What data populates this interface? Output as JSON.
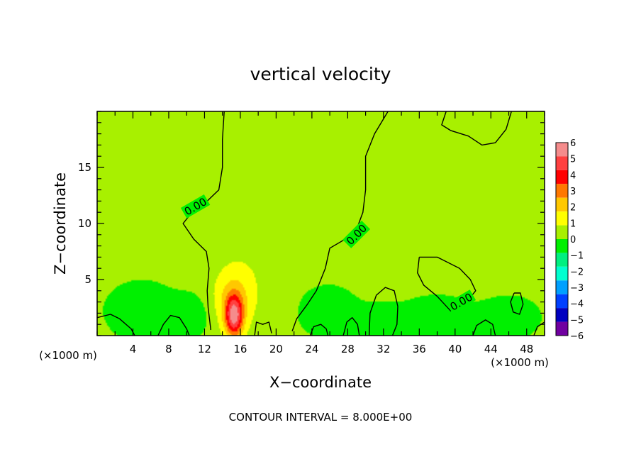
{
  "chart_data": {
    "type": "heatmap",
    "title": "vertical velocity",
    "xlabel": "X−coordinate",
    "ylabel": "Z−coordinate",
    "x_unit": "(×1000 m)",
    "y_unit": "(×1000 m)",
    "xlim": [
      0,
      50
    ],
    "ylim": [
      0,
      20
    ],
    "x_ticks": [
      4,
      8,
      12,
      16,
      20,
      24,
      28,
      32,
      36,
      40,
      44,
      48
    ],
    "y_ticks": [
      5,
      10,
      15
    ],
    "background_value": 0.2,
    "field_features": [
      {
        "x": 15.3,
        "z": 1.7,
        "sx": 0.7,
        "sz": 1.3,
        "amp": 5.2
      },
      {
        "x": 15.2,
        "z": 3.2,
        "sx": 1.6,
        "sz": 2.0,
        "amp": 1.9
      },
      {
        "x": 18.0,
        "z": 7.5,
        "sx": 3.2,
        "sz": 4.5,
        "amp": 0.5
      },
      {
        "x": 20.5,
        "z": 3.0,
        "sx": 1.0,
        "sz": 1.6,
        "amp": 0.4
      },
      {
        "x": 5.0,
        "z": 2.2,
        "sx": 2.5,
        "sz": 1.6,
        "amp": -0.9
      },
      {
        "x": 10.5,
        "z": 1.8,
        "sx": 1.5,
        "sz": 1.2,
        "amp": -0.9
      },
      {
        "x": 25.5,
        "z": 2.2,
        "sx": 2.2,
        "sz": 1.4,
        "amp": -0.9
      },
      {
        "x": 31.5,
        "z": 1.3,
        "sx": 2.0,
        "sz": 1.0,
        "amp": -0.7
      },
      {
        "x": 38.0,
        "z": 1.5,
        "sx": 2.6,
        "sz": 1.2,
        "amp": -1.0
      },
      {
        "x": 46.0,
        "z": 1.6,
        "sx": 2.2,
        "sz": 1.2,
        "amp": -0.8
      }
    ],
    "contour_lines": [
      {
        "label": "0.00",
        "label_at": [
          11.0,
          11.5
        ],
        "label_angle": -30,
        "points": [
          [
            14.2,
            20
          ],
          [
            14.0,
            17.5
          ],
          [
            14.0,
            15.0
          ],
          [
            13.6,
            13.0
          ],
          [
            12.3,
            12.0
          ],
          [
            10.6,
            11.0
          ],
          [
            9.6,
            10.0
          ],
          [
            10.8,
            8.6
          ],
          [
            12.2,
            7.5
          ],
          [
            12.5,
            6.0
          ],
          [
            12.3,
            4.0
          ],
          [
            12.4,
            2.5
          ],
          [
            12.7,
            0.5
          ]
        ]
      },
      {
        "label": "0.00",
        "label_at": [
          29.0,
          9.0
        ],
        "label_angle": -45,
        "points": [
          [
            32.5,
            20
          ],
          [
            31.0,
            18.0
          ],
          [
            30.0,
            16.0
          ],
          [
            30.0,
            13.0
          ],
          [
            29.7,
            11.0
          ],
          [
            29.0,
            9.5
          ],
          [
            27.5,
            8.5
          ],
          [
            26.0,
            7.8
          ],
          [
            25.5,
            6.0
          ],
          [
            24.5,
            4.0
          ],
          [
            23.5,
            2.8
          ],
          [
            22.3,
            1.5
          ],
          [
            21.8,
            0.4
          ]
        ]
      },
      {
        "label": "",
        "label_at": [],
        "points": [
          [
            39.0,
            20
          ],
          [
            38.5,
            18.8
          ],
          [
            39.5,
            18.3
          ],
          [
            41.5,
            17.8
          ],
          [
            43.0,
            17.0
          ],
          [
            44.5,
            17.2
          ],
          [
            45.7,
            18.4
          ],
          [
            46.3,
            20
          ]
        ]
      },
      {
        "label": "0.00",
        "label_at": [
          40.7,
          3.0
        ],
        "label_angle": -30,
        "points": [
          [
            36.0,
            7.0
          ],
          [
            38.0,
            7.0
          ],
          [
            40.5,
            6.0
          ],
          [
            41.7,
            5.0
          ],
          [
            42.3,
            4.0
          ],
          [
            41.5,
            3.2
          ],
          [
            40.0,
            2.5
          ],
          [
            39.5,
            2.2
          ],
          [
            38.0,
            3.5
          ],
          [
            36.5,
            4.5
          ],
          [
            35.8,
            5.6
          ],
          [
            36.0,
            7.0
          ]
        ]
      },
      {
        "label": "",
        "label_at": [],
        "points": [
          [
            46.6,
            3.8
          ],
          [
            47.3,
            3.8
          ],
          [
            47.6,
            2.8
          ],
          [
            47.2,
            1.9
          ],
          [
            46.5,
            2.1
          ],
          [
            46.2,
            3.0
          ],
          [
            46.6,
            3.8
          ]
        ]
      },
      {
        "label": "",
        "label_at": [],
        "points": [
          [
            0,
            1.6
          ],
          [
            1.5,
            1.9
          ],
          [
            2.5,
            1.5
          ],
          [
            3.8,
            0.6
          ],
          [
            4.2,
            0
          ]
        ]
      },
      {
        "label": "",
        "label_at": [],
        "points": [
          [
            6.8,
            0
          ],
          [
            7.4,
            1.0
          ],
          [
            8.2,
            1.8
          ],
          [
            9.2,
            1.6
          ],
          [
            10.0,
            0.6
          ],
          [
            10.3,
            0
          ]
        ]
      },
      {
        "label": "",
        "label_at": [],
        "points": [
          [
            17.6,
            0
          ],
          [
            17.8,
            1.2
          ],
          [
            18.5,
            1.0
          ],
          [
            19.2,
            1.2
          ],
          [
            19.5,
            0.2
          ]
        ]
      },
      {
        "label": "",
        "label_at": [],
        "points": [
          [
            23.8,
            0
          ],
          [
            24.2,
            0.8
          ],
          [
            25.0,
            1.0
          ],
          [
            25.6,
            0.6
          ],
          [
            25.8,
            0
          ]
        ]
      },
      {
        "label": "",
        "label_at": [],
        "points": [
          [
            27.5,
            0
          ],
          [
            27.9,
            1.2
          ],
          [
            28.5,
            1.6
          ],
          [
            29.1,
            1.0
          ],
          [
            29.3,
            0
          ]
        ]
      },
      {
        "label": "",
        "label_at": [],
        "points": [
          [
            30.4,
            0
          ],
          [
            30.5,
            2.0
          ],
          [
            31.2,
            3.6
          ],
          [
            32.2,
            4.3
          ],
          [
            33.2,
            4.0
          ],
          [
            33.6,
            2.6
          ],
          [
            33.5,
            1.0
          ],
          [
            33.0,
            0
          ]
        ]
      },
      {
        "label": "",
        "label_at": [],
        "points": [
          [
            42.0,
            0
          ],
          [
            42.4,
            0.9
          ],
          [
            43.4,
            1.4
          ],
          [
            44.2,
            1.0
          ],
          [
            44.5,
            0
          ]
        ]
      },
      {
        "label": "",
        "label_at": [],
        "points": [
          [
            48.8,
            0
          ],
          [
            49.2,
            0.8
          ],
          [
            50.0,
            1.2
          ]
        ]
      }
    ],
    "colorbar": {
      "levels": [
        6,
        5,
        4,
        3,
        2,
        1,
        0,
        -1,
        -2,
        -3,
        -4,
        -5,
        -6
      ],
      "colors": [
        "#f58c8c",
        "#ff4040",
        "#ff0000",
        "#ff7800",
        "#ffc800",
        "#ffff00",
        "#a8f000",
        "#00f000",
        "#00f080",
        "#00ffd0",
        "#00a0ff",
        "#0040ff",
        "#0000c0",
        "#7000a0"
      ]
    },
    "footer": "CONTOUR INTERVAL = 8.000E+00"
  }
}
